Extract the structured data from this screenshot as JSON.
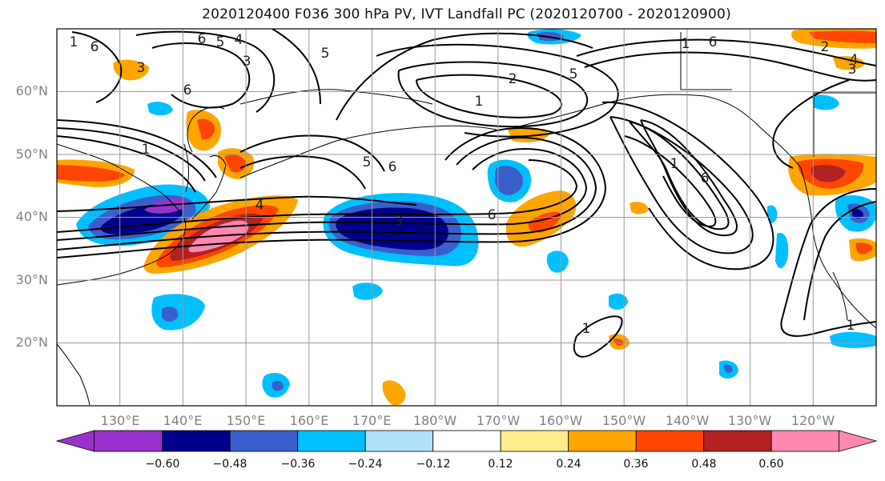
{
  "title": "2020120400 F036 300 hPa PV, IVT Landfall PC (2020120700 - 2020120900)",
  "lat_labels": [
    "60°N",
    "50°N",
    "40°N",
    "30°N",
    "20°N"
  ],
  "lat_values": [
    60,
    50,
    40,
    30,
    20
  ],
  "lon_labels": [
    "130°E",
    "140°E",
    "150°E",
    "160°E",
    "170°E",
    "180°W",
    "170°W",
    "160°W",
    "150°W",
    "140°W",
    "130°W",
    "120°W"
  ],
  "lon_values": [
    130,
    140,
    150,
    160,
    170,
    180,
    190,
    200,
    210,
    220,
    230,
    240
  ],
  "map_extent": {
    "lon_min": 120,
    "lon_max": 250,
    "lat_min": 10,
    "lat_max": 70
  },
  "colorbar": {
    "tick_labels": [
      "−0.60",
      "−0.48",
      "−0.36",
      "−0.24",
      "−0.12",
      "0.12",
      "0.24",
      "0.36",
      "0.48",
      "0.60"
    ],
    "colors": [
      "#9932CC",
      "#00008B",
      "#3A5FCD",
      "#00BFFF",
      "#B0E2FF",
      "#FFFFFF",
      "#FFEC8B",
      "#FFA500",
      "#FF4500",
      "#B22222",
      "#FF88B0"
    ]
  },
  "contour_labels": [
    "6",
    "5",
    "4",
    "3",
    "6",
    "1",
    "5",
    "3",
    "2",
    "5",
    "1",
    "6",
    "5",
    "6",
    "1",
    "6",
    "1",
    "6",
    "4",
    "3",
    "6",
    "1",
    "2",
    "3",
    "4",
    "1",
    "1"
  ]
}
